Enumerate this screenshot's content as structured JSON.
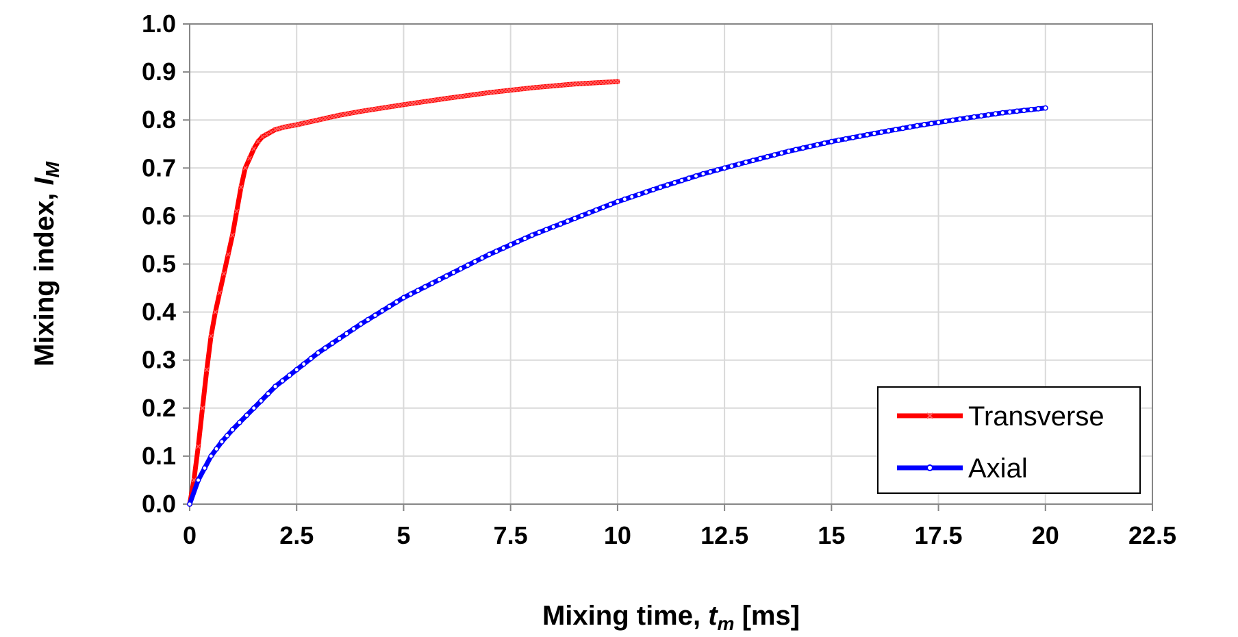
{
  "chart_data": {
    "type": "line",
    "xlabel": {
      "main": "Mixing time, ",
      "var": "t",
      "sub": "m",
      "unit": " [ms]"
    },
    "ylabel": {
      "main": "Mixing index, ",
      "var": "I",
      "sub": "M"
    },
    "xlim": [
      0,
      22.5
    ],
    "ylim": [
      0,
      1.0
    ],
    "x_ticks": [
      "0",
      "2.5",
      "5",
      "7.5",
      "10",
      "12.5",
      "15",
      "17.5",
      "20",
      "22.5"
    ],
    "y_ticks": [
      "0.0",
      "0.1",
      "0.2",
      "0.3",
      "0.4",
      "0.5",
      "0.6",
      "0.7",
      "0.8",
      "0.9",
      "1.0"
    ],
    "grid": true,
    "legend_position": "bottom-right",
    "series": [
      {
        "name": "Transverse",
        "color": "#ff0000",
        "marker": "x",
        "x": [
          0,
          0.1,
          0.2,
          0.3,
          0.4,
          0.5,
          0.6,
          0.7,
          0.8,
          0.9,
          1.0,
          1.1,
          1.2,
          1.3,
          1.4,
          1.5,
          1.6,
          1.7,
          1.8,
          2.0,
          2.2,
          2.5,
          3.0,
          3.5,
          4.0,
          5.0,
          6.0,
          7.0,
          8.0,
          9.0,
          10.0
        ],
        "y": [
          0,
          0.05,
          0.12,
          0.2,
          0.28,
          0.35,
          0.4,
          0.44,
          0.48,
          0.52,
          0.56,
          0.61,
          0.66,
          0.7,
          0.72,
          0.74,
          0.755,
          0.765,
          0.77,
          0.78,
          0.785,
          0.79,
          0.8,
          0.81,
          0.818,
          0.832,
          0.845,
          0.857,
          0.867,
          0.875,
          0.88
        ]
      },
      {
        "name": "Axial",
        "color": "#0000ff",
        "marker": "o",
        "x": [
          0,
          0.2,
          0.5,
          0.75,
          1.0,
          1.5,
          2.0,
          2.5,
          3.0,
          4.0,
          5.0,
          6.0,
          7.0,
          8.0,
          9.0,
          10.0,
          11.0,
          12.0,
          13.0,
          14.0,
          15.0,
          16.0,
          17.0,
          18.0,
          19.0,
          20.0
        ],
        "y": [
          0,
          0.05,
          0.1,
          0.13,
          0.155,
          0.2,
          0.245,
          0.28,
          0.315,
          0.375,
          0.43,
          0.475,
          0.52,
          0.56,
          0.595,
          0.63,
          0.66,
          0.688,
          0.712,
          0.735,
          0.755,
          0.772,
          0.788,
          0.802,
          0.815,
          0.825
        ]
      }
    ]
  }
}
